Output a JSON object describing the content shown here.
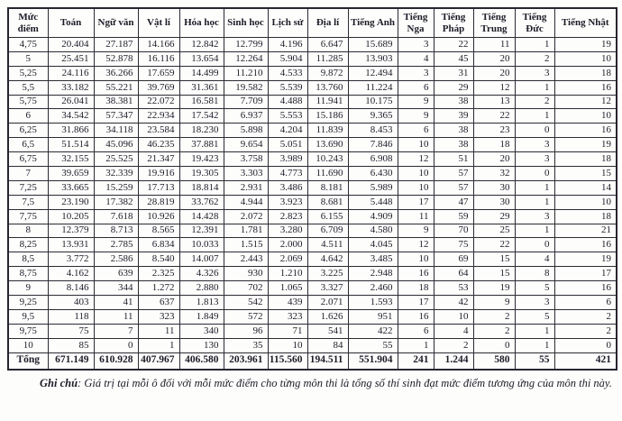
{
  "table": {
    "header": [
      "Mức điểm",
      "Toán",
      "Ngữ văn",
      "Vật lí",
      "Hóa học",
      "Sinh học",
      "Lịch sử",
      "Địa lí",
      "Tiếng Anh",
      "Tiếng Nga",
      "Tiếng Pháp",
      "Tiếng Trung",
      "Tiếng Đức",
      "Tiếng Nhật"
    ],
    "rows": [
      [
        "4,75",
        "20.404",
        "27.187",
        "14.166",
        "12.842",
        "12.799",
        "4.196",
        "6.647",
        "15.689",
        "3",
        "22",
        "11",
        "1",
        "19"
      ],
      [
        "5",
        "25.451",
        "52.878",
        "16.116",
        "13.654",
        "12.264",
        "5.904",
        "11.285",
        "13.903",
        "4",
        "45",
        "20",
        "2",
        "10"
      ],
      [
        "5,25",
        "24.116",
        "36.266",
        "17.659",
        "14.499",
        "11.210",
        "4.533",
        "9.872",
        "12.494",
        "3",
        "31",
        "20",
        "3",
        "18"
      ],
      [
        "5,5",
        "33.182",
        "55.221",
        "39.769",
        "31.361",
        "19.582",
        "5.539",
        "13.760",
        "11.224",
        "6",
        "29",
        "12",
        "1",
        "16"
      ],
      [
        "5,75",
        "26.041",
        "38.381",
        "22.072",
        "16.581",
        "7.709",
        "4.488",
        "11.941",
        "10.175",
        "9",
        "38",
        "13",
        "2",
        "12"
      ],
      [
        "6",
        "34.542",
        "57.347",
        "22.934",
        "17.542",
        "6.937",
        "5.553",
        "15.186",
        "9.365",
        "9",
        "39",
        "22",
        "1",
        "10"
      ],
      [
        "6,25",
        "31.866",
        "34.118",
        "23.584",
        "18.230",
        "5.898",
        "4.204",
        "11.839",
        "8.453",
        "6",
        "38",
        "23",
        "0",
        "16"
      ],
      [
        "6,5",
        "51.514",
        "45.096",
        "46.235",
        "37.881",
        "9.654",
        "5.051",
        "13.690",
        "7.846",
        "10",
        "38",
        "18",
        "3",
        "19"
      ],
      [
        "6,75",
        "32.155",
        "25.525",
        "21.347",
        "19.423",
        "3.758",
        "3.989",
        "10.243",
        "6.908",
        "12",
        "51",
        "20",
        "3",
        "18"
      ],
      [
        "7",
        "39.659",
        "32.339",
        "19.916",
        "19.305",
        "3.303",
        "4.773",
        "11.690",
        "6.430",
        "10",
        "57",
        "32",
        "0",
        "15"
      ],
      [
        "7,25",
        "33.665",
        "15.259",
        "17.713",
        "18.814",
        "2.931",
        "3.486",
        "8.181",
        "5.989",
        "10",
        "57",
        "30",
        "1",
        "14"
      ],
      [
        "7,5",
        "23.190",
        "17.382",
        "28.819",
        "33.762",
        "4.944",
        "3.923",
        "8.681",
        "5.448",
        "17",
        "47",
        "30",
        "1",
        "10"
      ],
      [
        "7,75",
        "10.205",
        "7.618",
        "10.926",
        "14.428",
        "2.072",
        "2.823",
        "6.155",
        "4.909",
        "11",
        "59",
        "29",
        "3",
        "18"
      ],
      [
        "8",
        "12.379",
        "8.713",
        "8.565",
        "12.391",
        "1.781",
        "3.280",
        "6.709",
        "4.580",
        "9",
        "70",
        "25",
        "1",
        "21"
      ],
      [
        "8,25",
        "13.931",
        "2.785",
        "6.834",
        "10.033",
        "1.515",
        "2.000",
        "4.511",
        "4.045",
        "12",
        "75",
        "22",
        "0",
        "16"
      ],
      [
        "8,5",
        "3.772",
        "2.586",
        "8.540",
        "14.007",
        "2.443",
        "2.069",
        "4.642",
        "3.485",
        "10",
        "69",
        "15",
        "4",
        "19"
      ],
      [
        "8,75",
        "4.162",
        "639",
        "2.325",
        "4.326",
        "930",
        "1.210",
        "3.225",
        "2.948",
        "16",
        "64",
        "15",
        "8",
        "17"
      ],
      [
        "9",
        "8.146",
        "344",
        "1.272",
        "2.880",
        "702",
        "1.065",
        "3.327",
        "2.460",
        "18",
        "53",
        "19",
        "5",
        "16"
      ],
      [
        "9,25",
        "403",
        "41",
        "637",
        "1.813",
        "542",
        "439",
        "2.071",
        "1.593",
        "17",
        "42",
        "9",
        "3",
        "6"
      ],
      [
        "9,5",
        "118",
        "11",
        "323",
        "1.849",
        "572",
        "323",
        "1.626",
        "951",
        "16",
        "10",
        "2",
        "5",
        "2"
      ],
      [
        "9,75",
        "75",
        "7",
        "11",
        "340",
        "96",
        "71",
        "541",
        "422",
        "6",
        "4",
        "2",
        "1",
        "2"
      ],
      [
        "10",
        "85",
        "0",
        "1",
        "130",
        "35",
        "10",
        "84",
        "55",
        "1",
        "2",
        "0",
        "1",
        "0"
      ]
    ],
    "total_row": [
      "Tổng",
      "671.149",
      "610.928",
      "407.967",
      "406.580",
      "203.961",
      "115.560",
      "194.511",
      "551.904",
      "241",
      "1.244",
      "580",
      "55",
      "421"
    ]
  },
  "note": {
    "label": "Ghi chú",
    "text": ": Giá trị tại mỗi ô đối với mỗi mức điểm cho từng môn thi là tổng số thí sinh đạt mức điểm tương ứng của môn thi này."
  },
  "colors": {
    "border": "#2b2b33",
    "text": "#1c1c28",
    "background": "#fdfdfc"
  }
}
